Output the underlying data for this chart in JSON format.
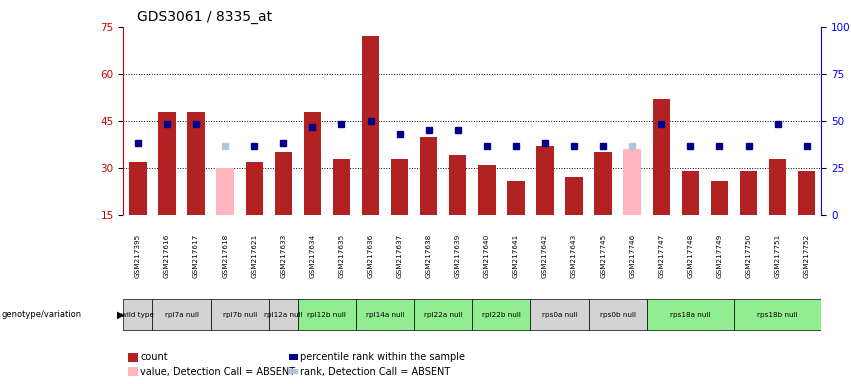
{
  "title": "GDS3061 / 8335_at",
  "samples": [
    "GSM217395",
    "GSM217616",
    "GSM217617",
    "GSM217618",
    "GSM217621",
    "GSM217633",
    "GSM217634",
    "GSM217635",
    "GSM217636",
    "GSM217637",
    "GSM217638",
    "GSM217639",
    "GSM217640",
    "GSM217641",
    "GSM217642",
    "GSM217643",
    "GSM217745",
    "GSM217746",
    "GSM217747",
    "GSM217748",
    "GSM217749",
    "GSM217750",
    "GSM217751",
    "GSM217752"
  ],
  "bar_values": [
    32,
    48,
    48,
    0,
    32,
    35,
    48,
    33,
    72,
    33,
    40,
    34,
    31,
    26,
    37,
    27,
    35,
    36,
    52,
    29,
    26,
    29,
    33,
    29
  ],
  "absent_bar_values": [
    0,
    0,
    0,
    30,
    0,
    0,
    0,
    0,
    0,
    0,
    0,
    0,
    0,
    0,
    0,
    0,
    0,
    36,
    0,
    0,
    0,
    0,
    0,
    0
  ],
  "blue_values": [
    38,
    44,
    44,
    37,
    37,
    38,
    43,
    44,
    45,
    41,
    42,
    42,
    37,
    37,
    38,
    37,
    37,
    38,
    44,
    37,
    37,
    37,
    44,
    37
  ],
  "absent_blue_values": [
    0,
    0,
    0,
    37,
    0,
    0,
    0,
    0,
    0,
    0,
    0,
    0,
    0,
    0,
    0,
    0,
    0,
    37,
    0,
    0,
    0,
    0,
    0,
    0
  ],
  "genotype_labels": [
    {
      "label": "wild type",
      "start": 0,
      "end": 0,
      "color": "#d3d3d3"
    },
    {
      "label": "rpl7a null",
      "start": 1,
      "end": 2,
      "color": "#d3d3d3"
    },
    {
      "label": "rpl7b null",
      "start": 3,
      "end": 4,
      "color": "#d3d3d3"
    },
    {
      "label": "rpl12a null",
      "start": 5,
      "end": 5,
      "color": "#d3d3d3"
    },
    {
      "label": "rpl12b null",
      "start": 6,
      "end": 7,
      "color": "#90ee90"
    },
    {
      "label": "rpl14a null",
      "start": 8,
      "end": 9,
      "color": "#90ee90"
    },
    {
      "label": "rpl22a null",
      "start": 10,
      "end": 11,
      "color": "#90ee90"
    },
    {
      "label": "rpl22b null",
      "start": 12,
      "end": 13,
      "color": "#90ee90"
    },
    {
      "label": "rps0a null",
      "start": 14,
      "end": 15,
      "color": "#d3d3d3"
    },
    {
      "label": "rps0b null",
      "start": 16,
      "end": 17,
      "color": "#d3d3d3"
    },
    {
      "label": "rps18a null",
      "start": 18,
      "end": 20,
      "color": "#90ee90"
    },
    {
      "label": "rps18b null",
      "start": 21,
      "end": 23,
      "color": "#90ee90"
    }
  ],
  "bar_color": "#b22222",
  "absent_bar_color": "#ffb6c1",
  "blue_color": "#00008b",
  "absent_blue_color": "#b0c4de",
  "ylim_left": [
    15,
    75
  ],
  "ylim_right": [
    0,
    100
  ],
  "yticks_left": [
    15,
    30,
    45,
    60,
    75
  ],
  "yticks_right": [
    0,
    25,
    50,
    75,
    100
  ],
  "grid_values": [
    30,
    45,
    60
  ],
  "bg_gray": "#d3d3d3",
  "bg_white": "#ffffff"
}
